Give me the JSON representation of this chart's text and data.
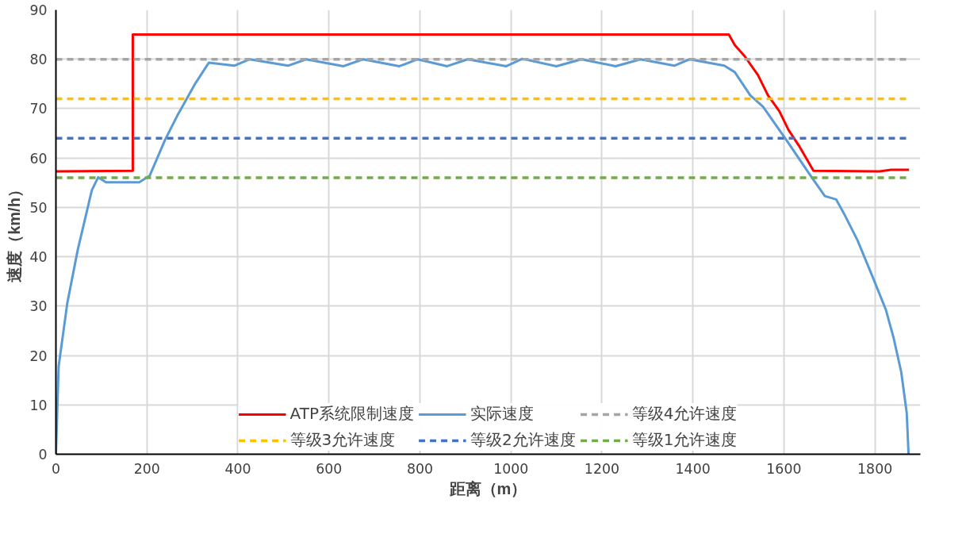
{
  "chart_data": {
    "type": "line",
    "xlabel": "距离（m）",
    "ylabel": "速度（km/h）",
    "xlim": [
      0,
      1900
    ],
    "xticks": [
      0,
      200,
      400,
      600,
      800,
      1000,
      1200,
      1400,
      1600,
      1800
    ],
    "ylim": [
      0,
      90
    ],
    "yticks": [
      0,
      10,
      20,
      30,
      40,
      50,
      60,
      70,
      80,
      90
    ],
    "grid": true,
    "legend": "bottom",
    "marker": "none",
    "series": [
      {
        "name": "ATP系统限制速度",
        "color": "#ff0000",
        "line_style": "solid",
        "x": [
          0,
          169,
          169,
          1479,
          1492,
          1514,
          1543,
          1565,
          1590,
          1610,
          1633,
          1665,
          1810,
          1836,
          1875
        ],
        "values": [
          57.3,
          57.4,
          85,
          85,
          82.9,
          80.6,
          76.8,
          72.7,
          69.5,
          65.7,
          62.5,
          57.4,
          57.3,
          57.6,
          57.6
        ]
      },
      {
        "name": "实际速度",
        "color": "#5b9bd5",
        "line_style": "solid",
        "x": [
          0,
          6,
          25,
          48,
          79,
          93,
          110,
          183,
          206,
          240,
          268,
          307,
          336,
          392,
          426,
          510,
          550,
          632,
          675,
          755,
          795,
          860,
          905,
          990,
          1025,
          1100,
          1155,
          1230,
          1285,
          1359,
          1393,
          1469,
          1492,
          1526,
          1554,
          1605,
          1661,
          1690,
          1715,
          1734,
          1762,
          1796,
          1824,
          1841,
          1858,
          1870,
          1874
        ],
        "values": [
          0,
          17.8,
          30.6,
          41.4,
          53.5,
          56.1,
          55.1,
          55.1,
          56.4,
          63.7,
          68.8,
          75.2,
          79.3,
          78.7,
          80,
          78.7,
          80,
          78.6,
          80,
          78.6,
          80,
          78.6,
          80,
          78.6,
          80.1,
          78.6,
          80,
          78.6,
          80,
          78.7,
          80,
          78.7,
          77.4,
          72.7,
          70.4,
          63.7,
          56.1,
          52.3,
          51.6,
          48.4,
          43.3,
          35.7,
          29.3,
          23.6,
          16.6,
          8.3,
          0
        ]
      },
      {
        "name": "等级4允许速度",
        "color": "#a5a5a5",
        "line_style": "dashed",
        "x": [
          0,
          1875
        ],
        "values": [
          80,
          80
        ]
      },
      {
        "name": "等级3允许速度",
        "color": "#ffc000",
        "line_style": "dashed",
        "x": [
          0,
          1875
        ],
        "values": [
          72,
          72
        ]
      },
      {
        "name": "等级2允许速度",
        "color": "#4472c4",
        "line_style": "dashed",
        "x": [
          0,
          1875
        ],
        "values": [
          64,
          64
        ]
      },
      {
        "name": "等级1允许速度",
        "color": "#70ad47",
        "line_style": "dashed",
        "x": [
          0,
          1875
        ],
        "values": [
          56,
          56
        ]
      }
    ]
  }
}
